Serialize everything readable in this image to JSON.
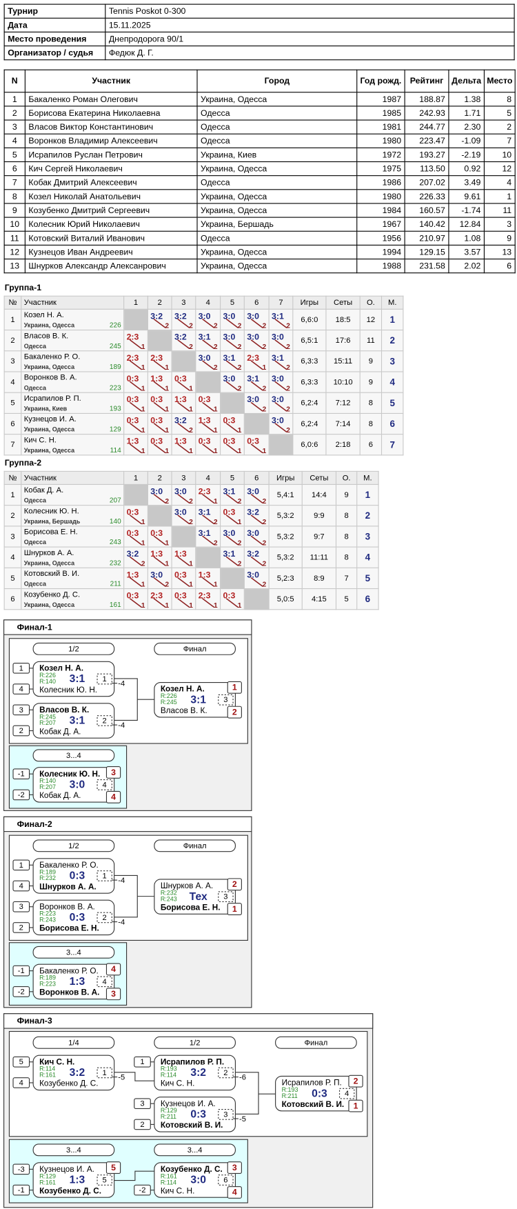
{
  "info": [
    [
      "Турнир",
      "Tennis Poskot  0-300"
    ],
    [
      "Дата",
      "15.11.2025"
    ],
    [
      "Место проведения",
      "Днепродорога 90/1"
    ],
    [
      "Организатор / судья",
      "Федюк Д. Г."
    ]
  ],
  "participants": {
    "headers": [
      "N",
      "Участник",
      "Город",
      "Год рожд.",
      "Рейтинг",
      "Дельта",
      "Место"
    ],
    "rows": [
      [
        1,
        "Бакаленко Роман Олегович",
        "Украина, Одесса",
        1987,
        "188.87",
        "1.38",
        8
      ],
      [
        2,
        "Борисова Екатерина Николаевна",
        "Одесса",
        1985,
        "242.93",
        "1.71",
        5
      ],
      [
        3,
        "Власов Виктор Константинович",
        "Одесса",
        1981,
        "244.77",
        "2.30",
        2
      ],
      [
        4,
        "Воронков Владимир Алексеевич",
        "Одесса",
        1980,
        "223.47",
        "-1.09",
        7
      ],
      [
        5,
        "Исрапилов Руслан Петрович",
        "Украина, Киев",
        1972,
        "193.27",
        "-2.19",
        10
      ],
      [
        6,
        "Кич Сергей Николаевич",
        "Украина, Одесса",
        1975,
        "113.50",
        "0.92",
        12
      ],
      [
        7,
        "Кобак Дмитрий Алексеевич",
        "Одесса",
        1986,
        "207.02",
        "3.49",
        4
      ],
      [
        8,
        "Козел Николай Анатольевич",
        "Украина, Одесса",
        1980,
        "226.33",
        "9.61",
        1
      ],
      [
        9,
        "Козубенко Дмитрий Сергеевич",
        "Украина, Одесса",
        1984,
        "160.57",
        "-1.74",
        11
      ],
      [
        10,
        "Колесник Юрий Николаевич",
        "Украина, Бершадь",
        1967,
        "140.42",
        "12.84",
        3
      ],
      [
        11,
        "Котовский Виталий Иванович",
        "Одесса",
        1956,
        "210.97",
        "1.08",
        9
      ],
      [
        12,
        "Кузнецов Иван Андреевич",
        "Украина, Одесса",
        1994,
        "129.15",
        "3.57",
        13
      ],
      [
        13,
        "Шнурков Александр Алексанрович",
        "Украина, Одесса",
        1988,
        "231.58",
        "2.02",
        6
      ]
    ]
  },
  "groups": [
    {
      "title": "Группа-1",
      "headers": [
        "№",
        "Участник",
        "1",
        "2",
        "3",
        "4",
        "5",
        "6",
        "7",
        "Игры",
        "Сеты",
        "О.",
        "М."
      ],
      "rows": [
        {
          "n": 1,
          "name": "Козел Н. А.",
          "city": "Украина, Одесса",
          "rating": 226,
          "cells": [
            null,
            {
              "s": "3:2",
              "p": 2
            },
            {
              "s": "3:2",
              "p": 2
            },
            {
              "s": "3:0",
              "p": 2
            },
            {
              "s": "3:0",
              "p": 2
            },
            {
              "s": "3:0",
              "p": 2
            },
            {
              "s": "3:1",
              "p": 2
            }
          ],
          "games": "6,6:0",
          "sets": "18:5",
          "points": 12,
          "place": 1
        },
        {
          "n": 2,
          "name": "Власов В. К.",
          "city": "Одесса",
          "rating": 245,
          "cells": [
            {
              "s": "2:3",
              "p": 1
            },
            null,
            {
              "s": "3:2",
              "p": 2
            },
            {
              "s": "3:1",
              "p": 2
            },
            {
              "s": "3:0",
              "p": 2
            },
            {
              "s": "3:0",
              "p": 2
            },
            {
              "s": "3:0",
              "p": 2
            }
          ],
          "games": "6,5:1",
          "sets": "17:6",
          "points": 11,
          "place": 2
        },
        {
          "n": 3,
          "name": "Бакаленко Р. О.",
          "city": "Украина, Одесса",
          "rating": 189,
          "cells": [
            {
              "s": "2:3",
              "p": 1
            },
            {
              "s": "2:3",
              "p": 1
            },
            null,
            {
              "s": "3:0",
              "p": 2
            },
            {
              "s": "3:1",
              "p": 2
            },
            {
              "s": "2:3",
              "p": 1
            },
            {
              "s": "3:1",
              "p": 2
            }
          ],
          "games": "6,3:3",
          "sets": "15:11",
          "points": 9,
          "place": 3
        },
        {
          "n": 4,
          "name": "Воронков В. А.",
          "city": "Одесса",
          "rating": 223,
          "cells": [
            {
              "s": "0:3",
              "p": 1
            },
            {
              "s": "1:3",
              "p": 1
            },
            {
              "s": "0:3",
              "p": 1
            },
            null,
            {
              "s": "3:0",
              "p": 2
            },
            {
              "s": "3:1",
              "p": 2
            },
            {
              "s": "3:0",
              "p": 2
            }
          ],
          "games": "6,3:3",
          "sets": "10:10",
          "points": 9,
          "place": 4
        },
        {
          "n": 5,
          "name": "Исрапилов Р. П.",
          "city": "Украина, Киев",
          "rating": 193,
          "cells": [
            {
              "s": "0:3",
              "p": 1
            },
            {
              "s": "0:3",
              "p": 1
            },
            {
              "s": "1:3",
              "p": 1
            },
            {
              "s": "0:3",
              "p": 1
            },
            null,
            {
              "s": "3:0",
              "p": 2
            },
            {
              "s": "3:0",
              "p": 2
            }
          ],
          "games": "6,2:4",
          "sets": "7:12",
          "points": 8,
          "place": 5
        },
        {
          "n": 6,
          "name": "Кузнецов И. А.",
          "city": "Украина, Одесса",
          "rating": 129,
          "cells": [
            {
              "s": "0:3",
              "p": 1
            },
            {
              "s": "0:3",
              "p": 1
            },
            {
              "s": "3:2",
              "p": 2
            },
            {
              "s": "1:3",
              "p": 1
            },
            {
              "s": "0:3",
              "p": 1
            },
            null,
            {
              "s": "3:0",
              "p": 2
            }
          ],
          "games": "6,2:4",
          "sets": "7:14",
          "points": 8,
          "place": 6
        },
        {
          "n": 7,
          "name": "Кич С. Н.",
          "city": "Украина, Одесса",
          "rating": 114,
          "cells": [
            {
              "s": "1:3",
              "p": 1
            },
            {
              "s": "0:3",
              "p": 1
            },
            {
              "s": "1:3",
              "p": 1
            },
            {
              "s": "0:3",
              "p": 1
            },
            {
              "s": "0:3",
              "p": 1
            },
            {
              "s": "0:3",
              "p": 1
            },
            null
          ],
          "games": "6,0:6",
          "sets": "2:18",
          "points": 6,
          "place": 7
        }
      ]
    },
    {
      "title": "Группа-2",
      "headers": [
        "№",
        "Участник",
        "1",
        "2",
        "3",
        "4",
        "5",
        "6",
        "Игры",
        "Сеты",
        "О.",
        "М."
      ],
      "rows": [
        {
          "n": 1,
          "name": "Кобак Д. А.",
          "city": "Одесса",
          "rating": 207,
          "cells": [
            null,
            {
              "s": "3:0",
              "p": 2
            },
            {
              "s": "3:0",
              "p": 2
            },
            {
              "s": "2:3",
              "p": 1
            },
            {
              "s": "3:1",
              "p": 2
            },
            {
              "s": "3:0",
              "p": 2
            }
          ],
          "games": "5,4:1",
          "sets": "14:4",
          "points": 9,
          "place": 1
        },
        {
          "n": 2,
          "name": "Колесник Ю. Н.",
          "city": "Украина, Бершадь",
          "rating": 140,
          "cells": [
            {
              "s": "0:3",
              "p": 1
            },
            null,
            {
              "s": "3:0",
              "p": 2
            },
            {
              "s": "3:1",
              "p": 2
            },
            {
              "s": "0:3",
              "p": 1
            },
            {
              "s": "3:2",
              "p": 2
            }
          ],
          "games": "5,3:2",
          "sets": "9:9",
          "points": 8,
          "place": 2
        },
        {
          "n": 3,
          "name": "Борисова Е. Н.",
          "city": "Одесса",
          "rating": 243,
          "cells": [
            {
              "s": "0:3",
              "p": 1
            },
            {
              "s": "0:3",
              "p": 1
            },
            null,
            {
              "s": "3:1",
              "p": 2
            },
            {
              "s": "3:0",
              "p": 2
            },
            {
              "s": "3:0",
              "p": 2
            }
          ],
          "games": "5,3:2",
          "sets": "9:7",
          "points": 8,
          "place": 3
        },
        {
          "n": 4,
          "name": "Шнурков А. А.",
          "city": "Украина, Одесса",
          "rating": 232,
          "cells": [
            {
              "s": "3:2",
              "p": 2
            },
            {
              "s": "1:3",
              "p": 1
            },
            {
              "s": "1:3",
              "p": 1
            },
            null,
            {
              "s": "3:1",
              "p": 2
            },
            {
              "s": "3:2",
              "p": 2
            }
          ],
          "games": "5,3:2",
          "sets": "11:11",
          "points": 8,
          "place": 4
        },
        {
          "n": 5,
          "name": "Котовский В. И.",
          "city": "Одесса",
          "rating": 211,
          "cells": [
            {
              "s": "1:3",
              "p": 1
            },
            {
              "s": "3:0",
              "p": 2
            },
            {
              "s": "0:3",
              "p": 1
            },
            {
              "s": "1:3",
              "p": 1
            },
            null,
            {
              "s": "3:0",
              "p": 2
            }
          ],
          "games": "5,2:3",
          "sets": "8:9",
          "points": 7,
          "place": 5
        },
        {
          "n": 6,
          "name": "Козубенко Д. С.",
          "city": "Украина, Одесса",
          "rating": 161,
          "cells": [
            {
              "s": "0:3",
              "p": 1
            },
            {
              "s": "2:3",
              "p": 1
            },
            {
              "s": "0:3",
              "p": 1
            },
            {
              "s": "2:3",
              "p": 1
            },
            {
              "s": "0:3",
              "p": 1
            },
            null
          ],
          "games": "5,0:5",
          "sets": "4:15",
          "points": 5,
          "place": 6
        }
      ]
    }
  ],
  "finals": [
    {
      "title": "Финал-1",
      "rounds": [
        "1/2",
        "Финал"
      ],
      "consolation_rounds": [
        "3...4"
      ],
      "matches": [
        {
          "seed1": "1",
          "seed2": "4",
          "p1": "Козел Н. А.",
          "r1": "R:226",
          "p2": "Колесник Ю. Н.",
          "r2": "R:140",
          "score": "3:1",
          "no": "1",
          "loser": "-4",
          "bold": 1
        },
        {
          "seed1": "3",
          "seed2": "2",
          "p1": "Власов В. К.",
          "r1": "R:245",
          "p2": "Кобак Д. А.",
          "r2": "R:207",
          "score": "3:1",
          "no": "2",
          "loser": "-4",
          "bold": 1
        },
        {
          "p1": "Козел Н. А.",
          "r1": "R:226",
          "p2": "Власов В. К.",
          "r2": "R:245",
          "score": "3:1",
          "no": "3",
          "place1": "1",
          "place2": "2",
          "bold": 1
        }
      ],
      "consolation": [
        {
          "seed1": "-1",
          "seed2": "-2",
          "p1": "Колесник Ю. Н.",
          "r1": "R:140",
          "p2": "Кобак Д. А.",
          "r2": "R:207",
          "score": "3:0",
          "no": "4",
          "place1": "3",
          "place2": "4",
          "bold": 1
        }
      ]
    },
    {
      "title": "Финал-2",
      "rounds": [
        "1/2",
        "Финал"
      ],
      "consolation_rounds": [
        "3...4"
      ],
      "matches": [
        {
          "seed1": "1",
          "seed2": "4",
          "p1": "Бакаленко Р. О.",
          "r1": "R:189",
          "p2": "Шнурков А. А.",
          "r2": "R:232",
          "score": "0:3",
          "no": "1",
          "loser": "-4",
          "bold": 2
        },
        {
          "seed1": "3",
          "seed2": "2",
          "p1": "Воронков В. А.",
          "r1": "R:223",
          "p2": "Борисова Е. Н.",
          "r2": "R:243",
          "score": "0:3",
          "no": "2",
          "loser": "-4",
          "bold": 2
        },
        {
          "p1": "Шнурков А. А.",
          "r1": "R:232",
          "p2": "Борисова Е. Н.",
          "r2": "R:243",
          "score": "Тех",
          "no": "3",
          "place1": "2",
          "place2": "1",
          "bold": 2
        }
      ],
      "consolation": [
        {
          "seed1": "-1",
          "seed2": "-2",
          "p1": "Бакаленко Р. О.",
          "r1": "R:189",
          "p2": "Воронков В. А.",
          "r2": "R:223",
          "score": "1:3",
          "no": "4",
          "place1": "4",
          "place2": "3",
          "bold": 2
        }
      ]
    },
    {
      "title": "Финал-3",
      "rounds": [
        "1/4",
        "1/2",
        "Финал"
      ],
      "consolation_rounds": [
        "3...4",
        "3...4"
      ],
      "matches": [
        {
          "seed1": "5",
          "seed2": "4",
          "p1": "Кич С. Н.",
          "r1": "R:114",
          "p2": "Козубенко Д. С.",
          "r2": "R:161",
          "score": "3:2",
          "no": "1",
          "loser": "-5",
          "bold": 1
        },
        {
          "seed1": "1",
          "p1": "Исрапилов Р. П.",
          "r1": "R:193",
          "p2": "Кич С. Н.",
          "r2": "R:114",
          "score": "3:2",
          "no": "2",
          "loser": "-6",
          "bold": 1
        },
        {
          "seed1": "3",
          "seed2": "2",
          "p1": "Кузнецов И. А.",
          "r1": "R:129",
          "p2": "Котовский В. И.",
          "r2": "R:211",
          "score": "0:3",
          "no": "3",
          "loser": "-5",
          "bold": 2
        },
        {
          "p1": "Исрапилов Р. П.",
          "r1": "R:193",
          "p2": "Котовский В. И.",
          "r2": "R:211",
          "score": "0:3",
          "no": "4",
          "place1": "2",
          "place2": "1",
          "bold": 2
        }
      ],
      "consolation": [
        {
          "seed1": "-3",
          "seed2": "-1",
          "p1": "Кузнецов И. А.",
          "r1": "R:129",
          "p2": "Козубенко Д. С.",
          "r2": "R:161",
          "score": "1:3",
          "no": "5",
          "place1": "5",
          "bold": 2
        },
        {
          "seed2": "-2",
          "p1": "Козубенко Д. С.",
          "r1": "R:161",
          "p2": "Кич С. Н.",
          "r2": "R:114",
          "score": "3:0",
          "no": "6",
          "place1": "3",
          "place2": "4",
          "bold": 1
        }
      ]
    }
  ]
}
